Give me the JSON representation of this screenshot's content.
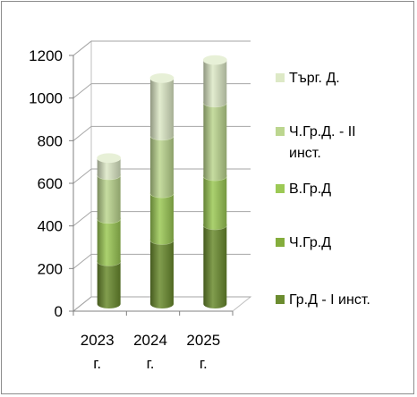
{
  "chart_data": {
    "type": "bar",
    "stacked": true,
    "style": "3d-cylinder",
    "categories": [
      [
        "2023",
        "г."
      ],
      [
        "2024",
        "г."
      ],
      [
        "2025",
        "г."
      ]
    ],
    "ylim": [
      0,
      1200
    ],
    "yticks": [
      "0",
      "200",
      "400",
      "600",
      "800",
      "1000",
      "1200"
    ],
    "grid": true,
    "legend_position": "right",
    "series": [
      {
        "name": "Гр.Д - I инст.",
        "values": [
          200,
          300,
          370
        ],
        "color": "#6b8c2f"
      },
      {
        "name": "Ч.Гр.Д",
        "values": [
          0,
          0,
          0
        ],
        "color": "#84ad3c"
      },
      {
        "name": "В.Гр.Д",
        "values": [
          200,
          220,
          230
        ],
        "color": "#9cc955"
      },
      {
        "name": "Ч.Гр.Д. - II инст.",
        "values": [
          205,
          270,
          345
        ],
        "color": "#bcd68f"
      },
      {
        "name": "Търг. Д.",
        "values": [
          80,
          270,
          200
        ],
        "color": "#dde9c6"
      }
    ],
    "legend": [
      {
        "lines": [
          "Търг. Д."
        ],
        "color": "#dde9c6"
      },
      {
        "lines": [
          "Ч.Гр.Д. - II",
          "инст."
        ],
        "color": "#bcd68f"
      },
      {
        "lines": [
          "В.Гр.Д"
        ],
        "color": "#9cc955"
      },
      {
        "lines": [
          "Ч.Гр.Д"
        ],
        "color": "#84ad3c"
      },
      {
        "lines": [
          "Гр.Д - I инст."
        ],
        "color": "#6b8c2f"
      }
    ]
  }
}
